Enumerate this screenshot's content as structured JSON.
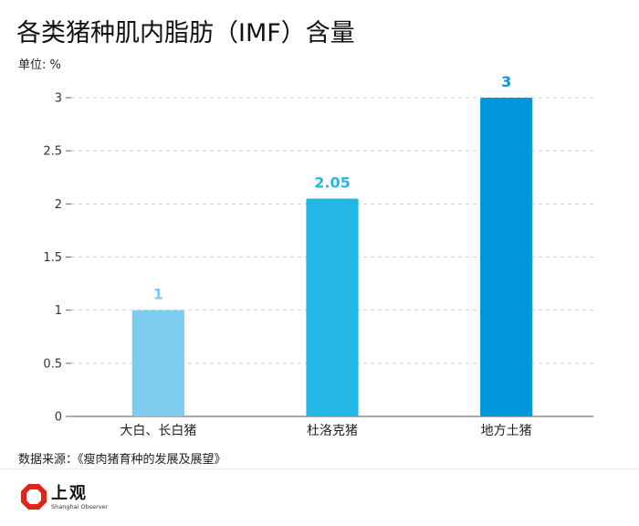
{
  "header": {
    "title": "各类猪种肌内脂肪（IMF）含量",
    "unit_label": "单位: %"
  },
  "chart_data": {
    "type": "bar",
    "categories": [
      "大白、长白猪",
      "杜洛克猪",
      "地方土猪"
    ],
    "values": [
      1,
      2.05,
      3
    ],
    "value_labels": [
      "1",
      "2.05",
      "3"
    ],
    "bar_colors": [
      "#7ecbf0",
      "#23b7e5",
      "#0096dc"
    ],
    "label_colors": [
      "#7ecbf0",
      "#23b7e5",
      "#0096dc"
    ],
    "yticks": [
      0,
      0.5,
      1,
      1.5,
      2,
      2.5,
      3
    ],
    "ytick_labels": [
      "0",
      "0.5",
      "1",
      "1.5",
      "2",
      "2.5",
      "3"
    ],
    "ylim": [
      0,
      3
    ],
    "grid": true,
    "title": "各类猪种肌内脂肪（IMF）含量",
    "ylabel": "单位: %",
    "xlabel": ""
  },
  "footer": {
    "source": "数据来源：《瘦肉猪育种的发展及展望》",
    "brand_cn": "上观",
    "brand_en": "Shanghai Observer",
    "logo_icon": "shanghai-observer-logo-icon",
    "logo_color": "#e2231a"
  }
}
